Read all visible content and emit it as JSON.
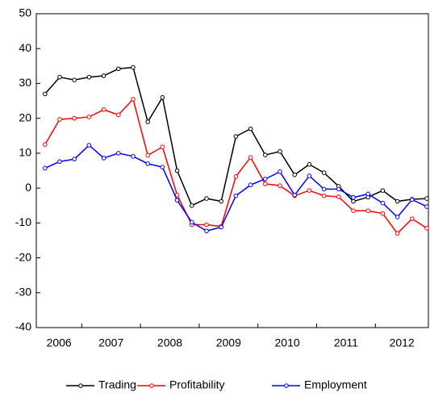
{
  "chart_data": {
    "type": "line",
    "year_labels": [
      "2006",
      "2007",
      "2008",
      "2009",
      "2010",
      "2011",
      "2012"
    ],
    "series": [
      {
        "name": "Trading",
        "color": "#000000",
        "values": [
          27,
          31.8,
          31,
          31.8,
          32.2,
          34.2,
          34.6,
          19,
          26,
          5,
          -5,
          -3,
          -3.8,
          14.8,
          17,
          9.5,
          10.5,
          3.8,
          6.8,
          4.4,
          0.5,
          -3.8,
          -2.6,
          -0.7,
          -3.8,
          -3.2,
          -3
        ]
      },
      {
        "name": "Profitability",
        "color": "#ff0000",
        "values": [
          12.5,
          19.7,
          20,
          20.4,
          22.5,
          21,
          25.5,
          9.4,
          11.8,
          -2,
          -10.5,
          -10.5,
          -11,
          3.3,
          8.8,
          1.2,
          0.7,
          -2.2,
          -0.7,
          -2.2,
          -2.5,
          -6.5,
          -6.5,
          -7.3,
          -13,
          -8.8,
          -11.5
        ]
      },
      {
        "name": "Employment",
        "color": "#0000ff",
        "values": [
          5.7,
          7.6,
          8.3,
          12.3,
          8.6,
          10,
          9.1,
          7,
          6,
          -3.5,
          -9.8,
          -12.3,
          -11.2,
          -2.2,
          0.9,
          2.6,
          4.7,
          -2,
          3.5,
          -0.3,
          -0.3,
          -2.7,
          -1.7,
          -4.3,
          -8.3,
          -3.3,
          -5.3
        ]
      }
    ],
    "ylim": [
      -40,
      50
    ],
    "yticks": [
      -40,
      -30,
      -20,
      -10,
      0,
      10,
      20,
      30,
      40,
      50
    ],
    "grid": false
  }
}
